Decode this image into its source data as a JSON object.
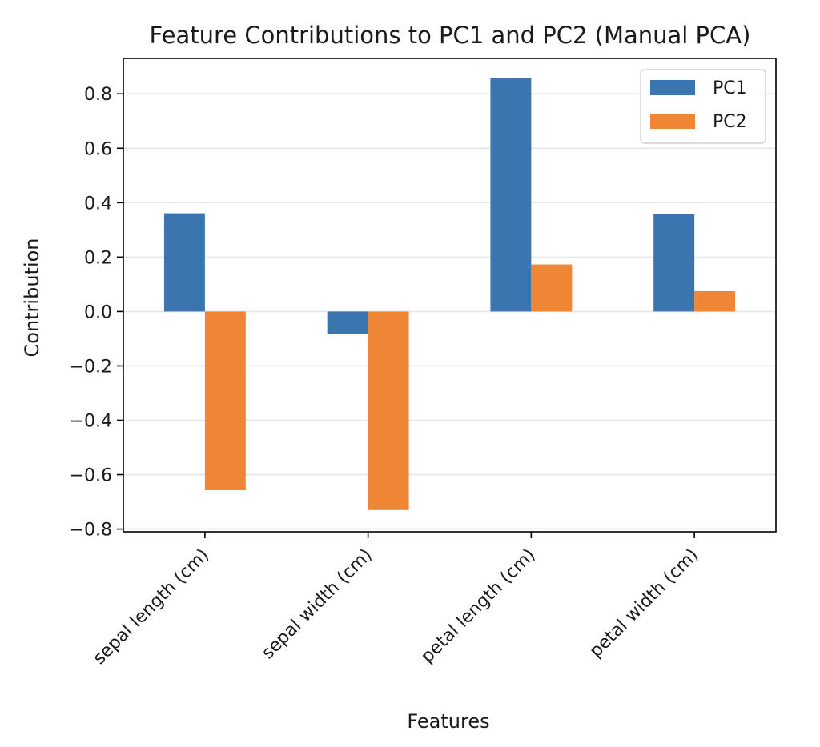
{
  "chart_data": {
    "type": "bar",
    "title": "Feature Contributions to PC1 and PC2 (Manual PCA)",
    "xlabel": "Features",
    "ylabel": "Contribution",
    "categories": [
      "sepal length (cm)",
      "sepal width (cm)",
      "petal length (cm)",
      "petal width (cm)"
    ],
    "series": [
      {
        "name": "PC1",
        "color": "#3a75af",
        "values": [
          0.361,
          -0.082,
          0.857,
          0.358
        ]
      },
      {
        "name": "PC2",
        "color": "#ef8636",
        "values": [
          -0.657,
          -0.73,
          0.173,
          0.075
        ]
      }
    ],
    "ylim": [
      -0.81,
      0.93
    ],
    "yticks": [
      {
        "value": 0.8,
        "label": "0.8"
      },
      {
        "value": 0.6,
        "label": "0.6"
      },
      {
        "value": 0.4,
        "label": "0.4"
      },
      {
        "value": 0.2,
        "label": "0.2"
      },
      {
        "value": 0.0,
        "label": "0.0"
      },
      {
        "value": -0.2,
        "label": "−0.2"
      },
      {
        "value": -0.4,
        "label": "−0.4"
      },
      {
        "value": -0.6,
        "label": "−0.6"
      },
      {
        "value": -0.8,
        "label": "−0.8"
      }
    ],
    "grid": "y-axis",
    "legend_position": "top-right"
  }
}
